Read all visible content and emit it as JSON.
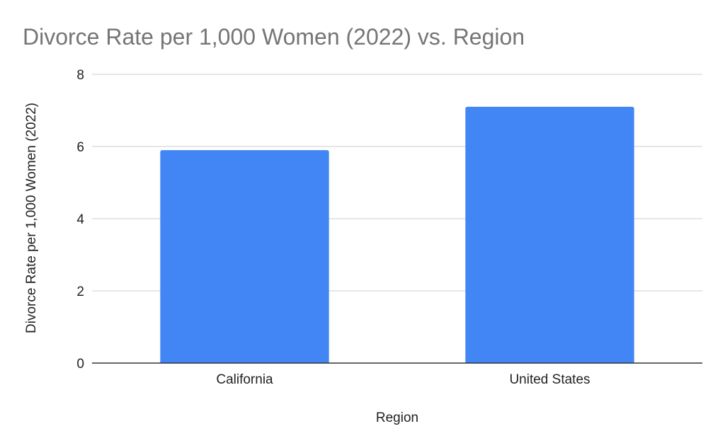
{
  "chart_data": {
    "type": "bar",
    "title": "Divorce Rate per 1,000 Women (2022) vs. Region",
    "xlabel": "Region",
    "ylabel": "Divorce Rate per 1,000 Women (2022)",
    "categories": [
      "California",
      "United States"
    ],
    "values": [
      5.9,
      7.1
    ],
    "ylim": [
      0,
      8
    ],
    "yticks": [
      0,
      2,
      4,
      6,
      8
    ],
    "grid": true,
    "legend": "none",
    "bar_color": "#4285f4"
  }
}
